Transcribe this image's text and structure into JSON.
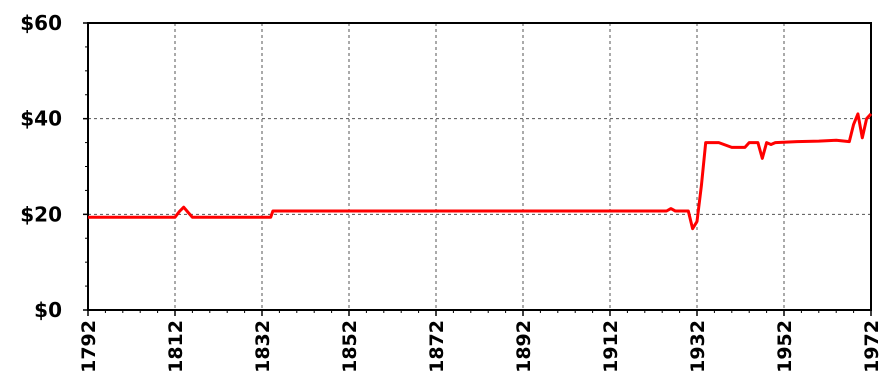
{
  "chart_data": {
    "type": "line",
    "title": "",
    "xlabel": "",
    "ylabel": "",
    "xlim": [
      1792,
      1972
    ],
    "ylim": [
      0,
      60
    ],
    "x_ticks": [
      1792,
      1812,
      1832,
      1852,
      1872,
      1892,
      1912,
      1932,
      1952,
      1972
    ],
    "y_ticks": [
      0,
      20,
      40,
      60
    ],
    "y_tick_labels": [
      "$0",
      "$20",
      "$40",
      "$60"
    ],
    "grid": true,
    "legend": "none",
    "series": [
      {
        "color": "#ff0000",
        "x": [
          1792,
          1812,
          1813,
          1814,
          1815,
          1816,
          1834,
          1834.5,
          1925,
          1926,
          1927,
          1930,
          1931,
          1932,
          1933,
          1934,
          1937,
          1940,
          1941,
          1942,
          1943,
          1944,
          1945,
          1946,
          1947,
          1948,
          1949,
          1950,
          1955,
          1960,
          1964,
          1967,
          1968,
          1969,
          1970,
          1971,
          1972
        ],
        "values": [
          19.4,
          19.4,
          20.6,
          21.5,
          20.4,
          19.4,
          19.4,
          20.7,
          20.7,
          21.2,
          20.7,
          20.7,
          17.0,
          18.5,
          26.0,
          35.0,
          35.0,
          34.0,
          34.0,
          34.0,
          34.0,
          35.0,
          35.0,
          35.0,
          31.7,
          35.0,
          34.6,
          35.0,
          35.2,
          35.3,
          35.5,
          35.2,
          38.8,
          41.0,
          36.0,
          40.0,
          41.0
        ]
      }
    ]
  }
}
